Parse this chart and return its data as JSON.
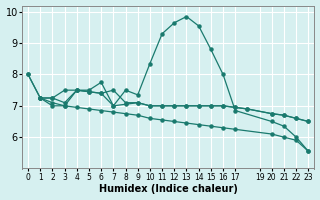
{
  "xlabel": "Humidex (Indice chaleur)",
  "bg_color": "#d6f0f0",
  "grid_color": "#ffffff",
  "line_color": "#1a7a6e",
  "x_ticks": [
    0,
    1,
    2,
    3,
    4,
    5,
    6,
    7,
    8,
    9,
    10,
    11,
    12,
    13,
    14,
    15,
    16,
    17,
    19,
    20,
    21,
    22,
    23
  ],
  "x_tick_labels": [
    "0",
    "1",
    "2",
    "3",
    "4",
    "5",
    "6",
    "7",
    "8",
    "9",
    "10",
    "11",
    "12",
    "13",
    "14",
    "15",
    "16",
    "17",
    "19",
    "20",
    "21",
    "22",
    "23"
  ],
  "ylim": [
    5.0,
    10.2
  ],
  "yticks": [
    6,
    7,
    8,
    9,
    10
  ],
  "series1_x": [
    0,
    1,
    2,
    3,
    4,
    5,
    6,
    7,
    8,
    9,
    10,
    11,
    12,
    13,
    14,
    15,
    16,
    17,
    20,
    21,
    22,
    23
  ],
  "series1": [
    8.0,
    7.25,
    7.25,
    7.5,
    7.5,
    7.5,
    7.75,
    7.0,
    7.5,
    7.35,
    8.35,
    9.3,
    9.65,
    9.85,
    9.55,
    8.8,
    8.0,
    6.85,
    6.5,
    6.35,
    6.0,
    5.55
  ],
  "series2_x": [
    1,
    2,
    3,
    4,
    5,
    6,
    7,
    8,
    9,
    10,
    11,
    12,
    13,
    14,
    15,
    16,
    17,
    18,
    20,
    21,
    22,
    23
  ],
  "series2": [
    7.25,
    7.1,
    7.0,
    7.5,
    7.45,
    7.4,
    7.0,
    7.05,
    7.1,
    7.0,
    7.0,
    7.0,
    7.0,
    7.0,
    7.0,
    7.0,
    6.95,
    6.9,
    6.75,
    6.7,
    6.6,
    6.5
  ],
  "series3_x": [
    1,
    2,
    3,
    4,
    5,
    6,
    7,
    8,
    9,
    10,
    11,
    12,
    13,
    14,
    15,
    16,
    17,
    18,
    20,
    21,
    22,
    23
  ],
  "series3": [
    7.25,
    7.25,
    7.1,
    7.5,
    7.45,
    7.4,
    7.5,
    7.1,
    7.1,
    7.0,
    7.0,
    7.0,
    7.0,
    7.0,
    7.0,
    7.0,
    6.95,
    6.9,
    6.75,
    6.7,
    6.6,
    6.5
  ],
  "series4_x": [
    0,
    1,
    2,
    3,
    4,
    5,
    6,
    7,
    8,
    9,
    10,
    11,
    12,
    13,
    14,
    15,
    16,
    17,
    20,
    21,
    22,
    23
  ],
  "series4": [
    8.0,
    7.25,
    7.0,
    7.0,
    6.95,
    6.9,
    6.85,
    6.8,
    6.75,
    6.7,
    6.6,
    6.55,
    6.5,
    6.45,
    6.4,
    6.35,
    6.3,
    6.25,
    6.1,
    6.0,
    5.9,
    5.55
  ]
}
